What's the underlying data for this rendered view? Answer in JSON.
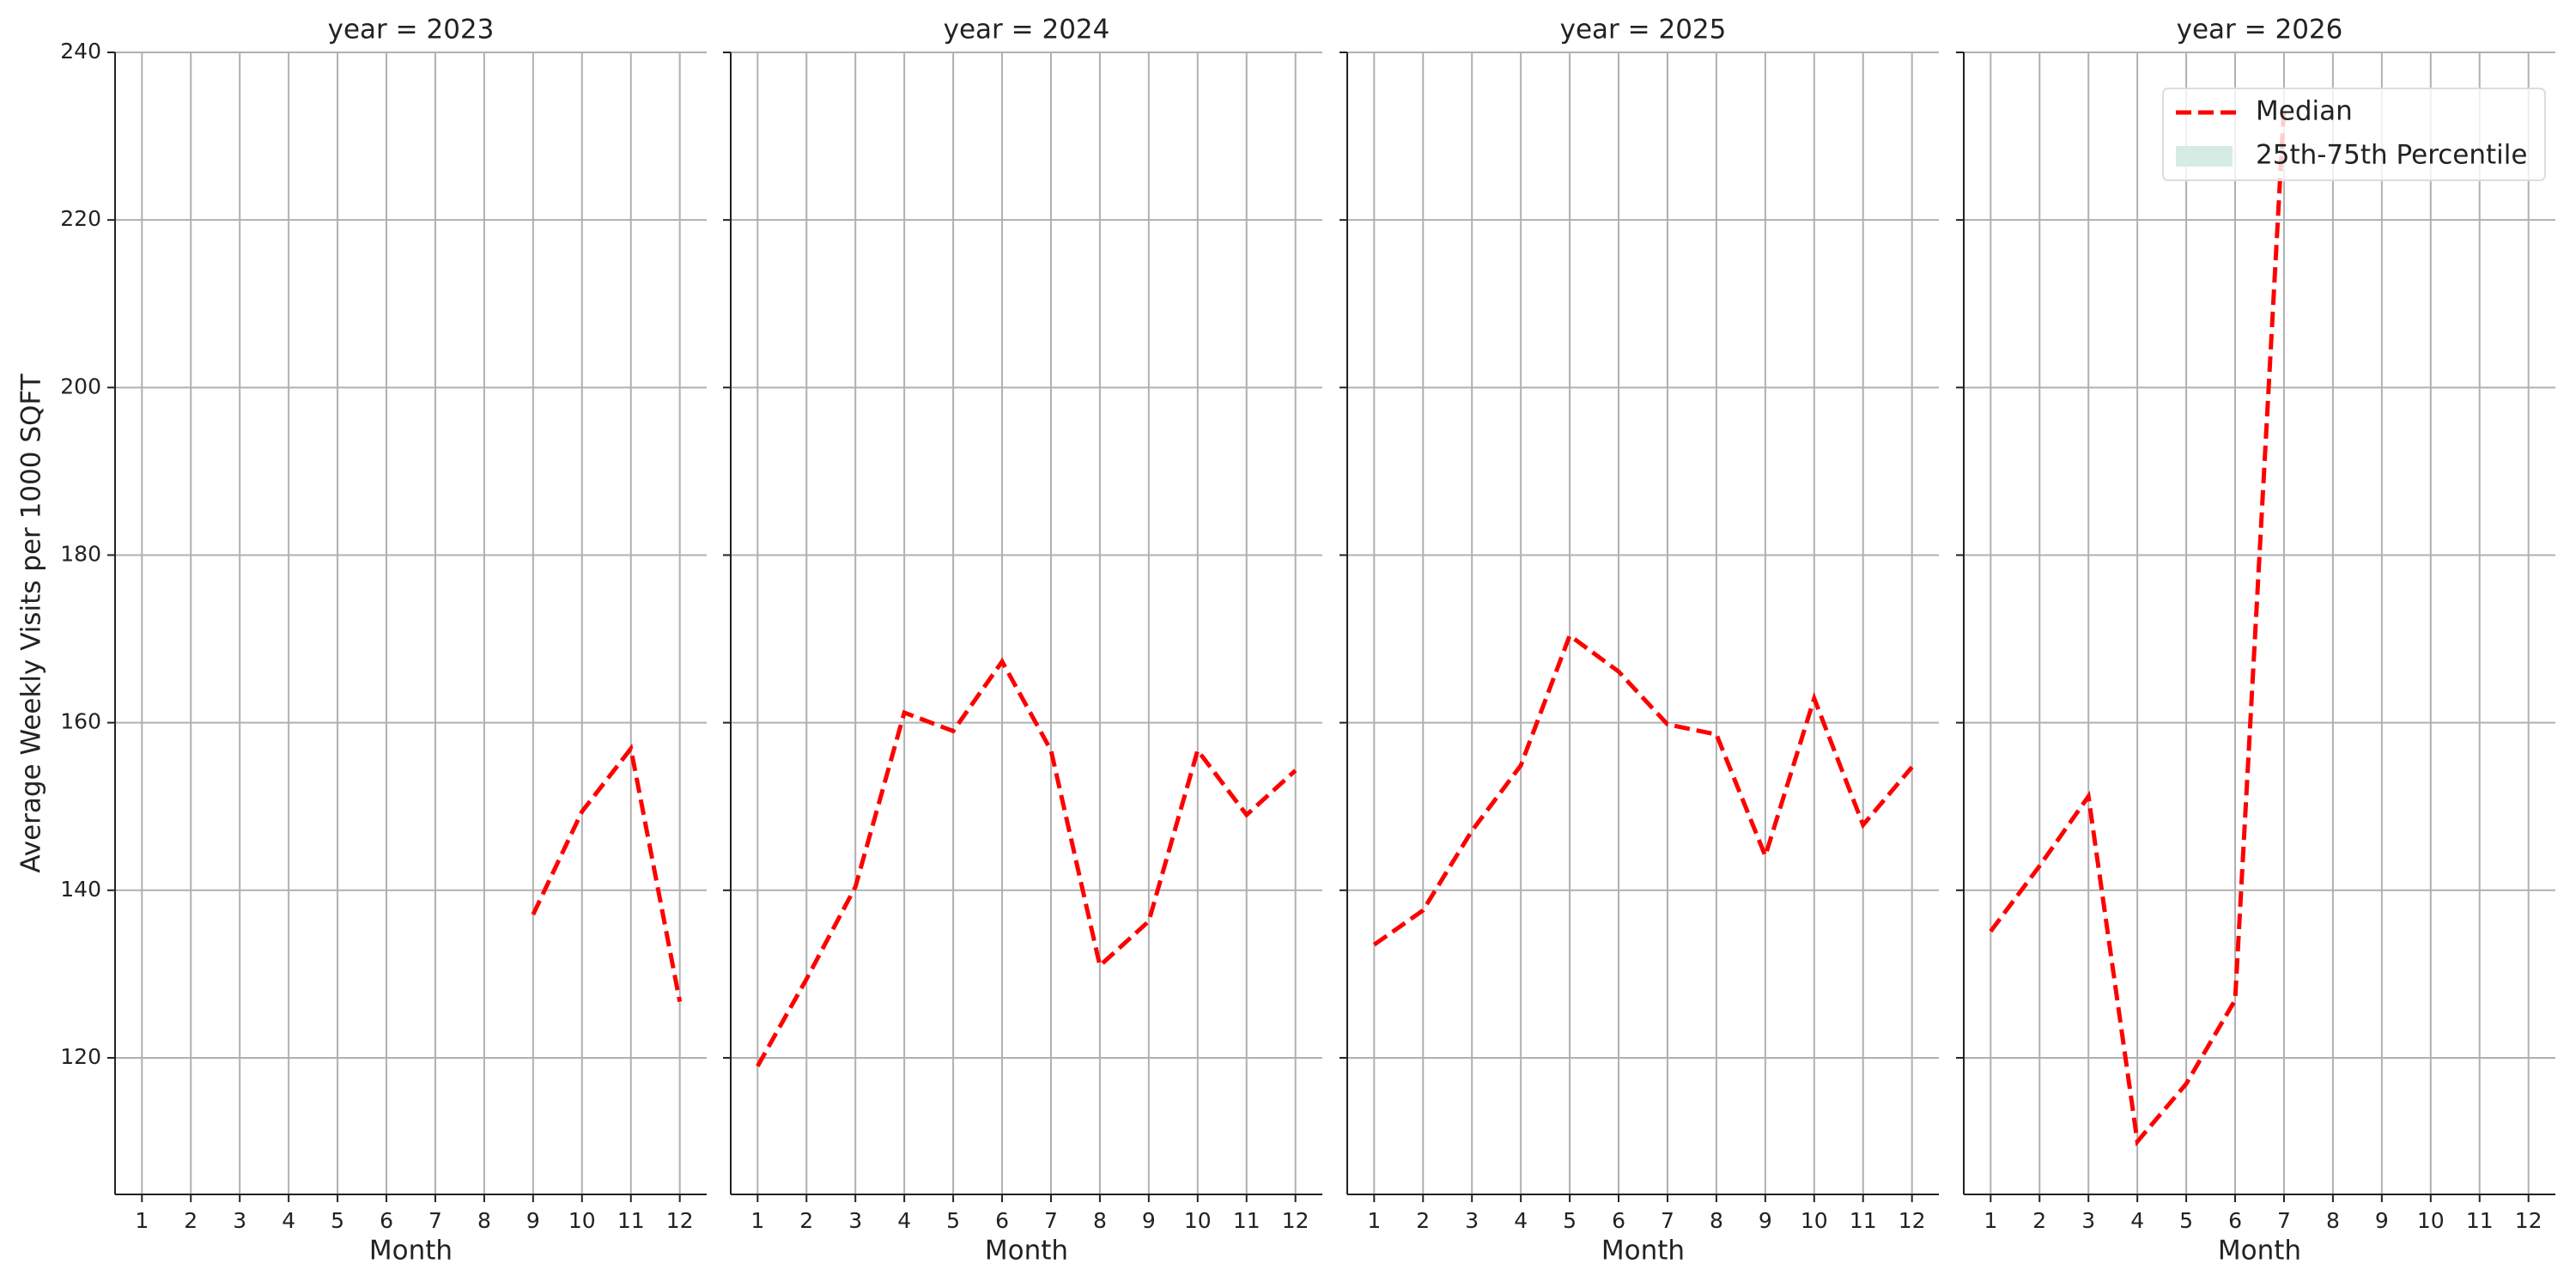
{
  "chart_data": [
    {
      "type": "line",
      "title": "year = 2023",
      "xlabel": "Month",
      "ylabel": "Average Weekly Visits per 1000 SQFT",
      "x": [
        1,
        2,
        3,
        4,
        5,
        6,
        7,
        8,
        9,
        10,
        11,
        12
      ],
      "series": [
        {
          "name": "Median",
          "color": "#ff0000",
          "values": [
            null,
            null,
            null,
            null,
            null,
            null,
            null,
            null,
            137.1,
            149.4,
            156.9,
            126.7
          ]
        }
      ],
      "xlim": [
        0.45,
        12.55
      ],
      "xticks": [
        1,
        2,
        3,
        4,
        5,
        6,
        7,
        8,
        9,
        10,
        11,
        12
      ],
      "ylim": [
        103.7,
        240
      ],
      "yticks": [
        120,
        140,
        160,
        180,
        200,
        220,
        240
      ],
      "grid": true,
      "show_ytick_labels": true
    },
    {
      "type": "line",
      "title": "year = 2024",
      "xlabel": "Month",
      "x": [
        1,
        2,
        3,
        4,
        5,
        6,
        7,
        8,
        9,
        10,
        11,
        12
      ],
      "series": [
        {
          "name": "Median",
          "color": "#ff0000",
          "values": [
            119.0,
            129.4,
            140.4,
            161.2,
            159.0,
            167.3,
            156.7,
            131.0,
            136.3,
            156.7,
            149.0,
            154.3
          ]
        }
      ],
      "xlim": [
        0.45,
        12.55
      ],
      "xticks": [
        1,
        2,
        3,
        4,
        5,
        6,
        7,
        8,
        9,
        10,
        11,
        12
      ],
      "ylim": [
        103.7,
        240
      ],
      "yticks": [
        120,
        140,
        160,
        180,
        200,
        220,
        240
      ],
      "grid": true,
      "show_ytick_labels": false
    },
    {
      "type": "line",
      "title": "year = 2025",
      "xlabel": "Month",
      "x": [
        1,
        2,
        3,
        4,
        5,
        6,
        7,
        8,
        9,
        10,
        11,
        12
      ],
      "series": [
        {
          "name": "Median",
          "color": "#ff0000",
          "values": [
            133.5,
            137.6,
            147.1,
            154.9,
            170.4,
            166.1,
            159.8,
            158.6,
            144.1,
            162.9,
            147.8,
            154.7
          ]
        }
      ],
      "xlim": [
        0.45,
        12.55
      ],
      "xticks": [
        1,
        2,
        3,
        4,
        5,
        6,
        7,
        8,
        9,
        10,
        11,
        12
      ],
      "ylim": [
        103.7,
        240
      ],
      "yticks": [
        120,
        140,
        160,
        180,
        200,
        220,
        240
      ],
      "grid": true,
      "show_ytick_labels": false
    },
    {
      "type": "line",
      "title": "year = 2026",
      "xlabel": "Month",
      "x": [
        1,
        2,
        3,
        4,
        5,
        6,
        7,
        8,
        9,
        10,
        11,
        12
      ],
      "series": [
        {
          "name": "Median",
          "color": "#ff0000",
          "values": [
            135.1,
            142.9,
            151.2,
            110.0,
            116.9,
            126.9,
            233.5,
            null,
            null,
            null,
            null,
            null
          ]
        }
      ],
      "xlim": [
        0.45,
        12.55
      ],
      "xticks": [
        1,
        2,
        3,
        4,
        5,
        6,
        7,
        8,
        9,
        10,
        11,
        12
      ],
      "ylim": [
        103.7,
        240
      ],
      "yticks": [
        120,
        140,
        160,
        180,
        200,
        220,
        240
      ],
      "grid": true,
      "show_ytick_labels": false,
      "legend": {
        "loc": "upper right",
        "entries": [
          {
            "name": "Median",
            "color": "#ff0000",
            "style": "dashed-line"
          },
          {
            "name": "25th-75th Percentile",
            "color": "#d5ece4",
            "style": "patch"
          }
        ]
      }
    }
  ]
}
